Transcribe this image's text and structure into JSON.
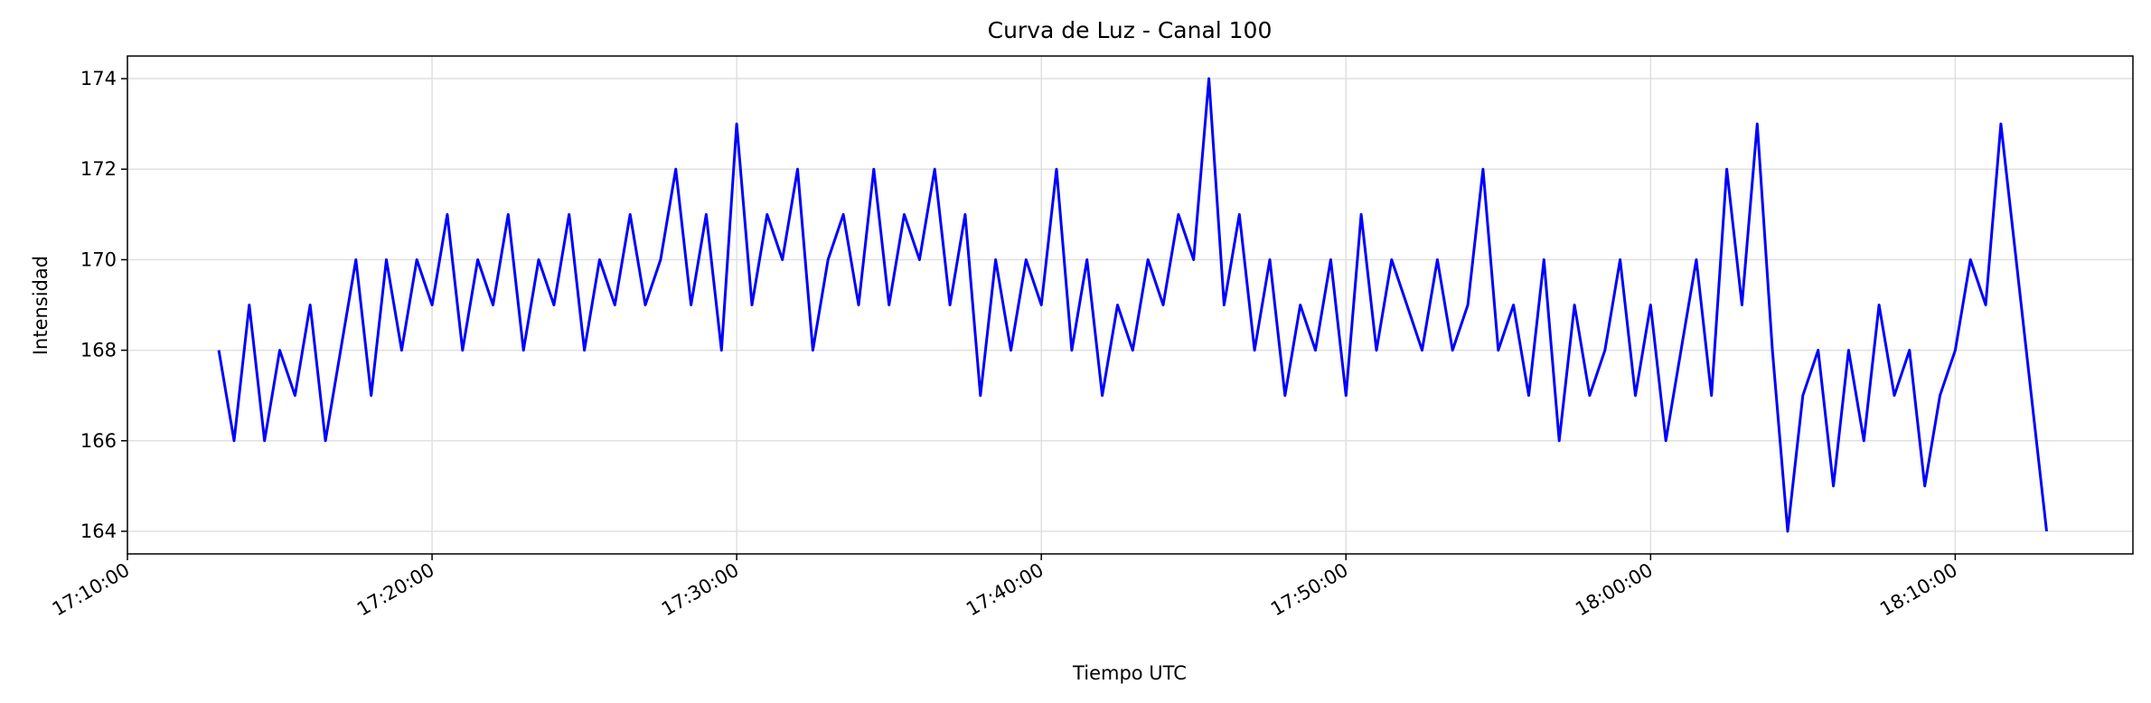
{
  "chart_data": {
    "type": "line",
    "title": "Curva de Luz - Canal 100",
    "xlabel": "Tiempo UTC",
    "ylabel": "Intensidad",
    "x": [
      "17:13:00",
      "17:13:30",
      "17:14:00",
      "17:14:30",
      "17:15:00",
      "17:15:30",
      "17:16:00",
      "17:16:30",
      "17:17:00",
      "17:17:30",
      "17:18:00",
      "17:18:30",
      "17:19:00",
      "17:19:30",
      "17:20:00",
      "17:20:30",
      "17:21:00",
      "17:21:30",
      "17:22:00",
      "17:22:30",
      "17:23:00",
      "17:23:30",
      "17:24:00",
      "17:24:30",
      "17:25:00",
      "17:25:30",
      "17:26:00",
      "17:26:30",
      "17:27:00",
      "17:27:30",
      "17:28:00",
      "17:28:30",
      "17:29:00",
      "17:29:30",
      "17:30:00",
      "17:30:30",
      "17:31:00",
      "17:31:30",
      "17:32:00",
      "17:32:30",
      "17:33:00",
      "17:33:30",
      "17:34:00",
      "17:34:30",
      "17:35:00",
      "17:35:30",
      "17:36:00",
      "17:36:30",
      "17:37:00",
      "17:37:30",
      "17:38:00",
      "17:38:30",
      "17:39:00",
      "17:39:30",
      "17:40:00",
      "17:40:30",
      "17:41:00",
      "17:41:30",
      "17:42:00",
      "17:42:30",
      "17:43:00",
      "17:43:30",
      "17:44:00",
      "17:44:30",
      "17:45:00",
      "17:45:30",
      "17:46:00",
      "17:46:30",
      "17:47:00",
      "17:47:30",
      "17:48:00",
      "17:48:30",
      "17:49:00",
      "17:49:30",
      "17:50:00",
      "17:50:30",
      "17:51:00",
      "17:51:30",
      "17:52:00",
      "17:52:30",
      "17:53:00",
      "17:53:30",
      "17:54:00",
      "17:54:30",
      "17:55:00",
      "17:55:30",
      "17:56:00",
      "17:56:30",
      "17:57:00",
      "17:57:30",
      "17:58:00",
      "17:58:30",
      "17:59:00",
      "17:59:30",
      "18:00:00",
      "18:00:30",
      "18:01:00",
      "18:01:30",
      "18:02:00",
      "18:02:30",
      "18:03:00",
      "18:03:30",
      "18:04:00",
      "18:04:30",
      "18:05:00",
      "18:05:30",
      "18:06:00",
      "18:06:30",
      "18:07:00",
      "18:07:30",
      "18:08:00",
      "18:08:30",
      "18:09:00",
      "18:09:30",
      "18:10:00",
      "18:10:30",
      "18:11:00",
      "18:11:30",
      "18:12:00",
      "18:12:30",
      "18:13:00"
    ],
    "series": [
      {
        "name": "Canal 100",
        "color": "#0000ff",
        "values": [
          168,
          166,
          169,
          166,
          168,
          167,
          169,
          166,
          168,
          170,
          167,
          170,
          168,
          170,
          169,
          171,
          168,
          170,
          169,
          171,
          168,
          170,
          169,
          171,
          168,
          170,
          169,
          171,
          169,
          170,
          172,
          169,
          171,
          168,
          173,
          169,
          171,
          170,
          172,
          168,
          170,
          171,
          169,
          172,
          169,
          171,
          170,
          172,
          169,
          171,
          167,
          170,
          168,
          170,
          169,
          172,
          168,
          170,
          167,
          169,
          168,
          170,
          169,
          171,
          170,
          174,
          169,
          171,
          168,
          170,
          167,
          169,
          168,
          170,
          167,
          171,
          168,
          170,
          169,
          168,
          170,
          168,
          169,
          172,
          168,
          169,
          167,
          170,
          166,
          169,
          167,
          168,
          170,
          167,
          169,
          166,
          168,
          170,
          167,
          172,
          169,
          173,
          168,
          164,
          167,
          168,
          165,
          168,
          166,
          169,
          167,
          168,
          165,
          167,
          168,
          170,
          169,
          173,
          170,
          167,
          164
        ]
      }
    ],
    "xlim": [
      "17:10:00",
      "18:15:50"
    ],
    "xticks": [
      "17:10:00",
      "17:20:00",
      "17:30:00",
      "17:40:00",
      "17:50:00",
      "18:00:00",
      "18:10:00"
    ],
    "ylim": [
      163.5,
      174.5
    ],
    "yticks": [
      164,
      166,
      168,
      170,
      172,
      174
    ],
    "grid": true
  }
}
